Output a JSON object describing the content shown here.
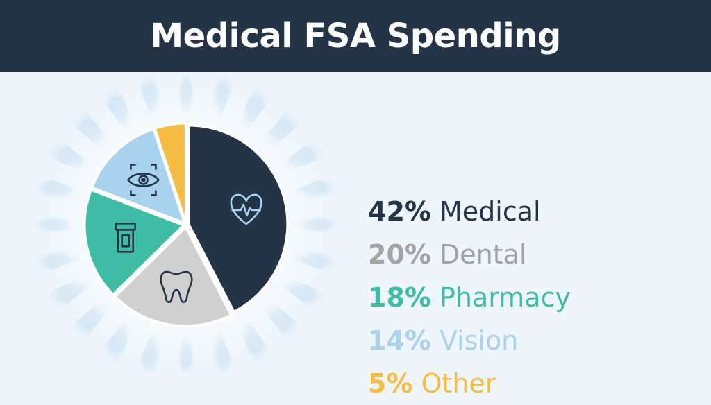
{
  "header": {
    "title": "Medical FSA Spending"
  },
  "colors": {
    "header_bg": "#243447",
    "background": "#eef6fc",
    "medical": "#243447",
    "dental": "#d0d0d0",
    "pharmacy": "#3dbda5",
    "vision": "#a9d2ef",
    "other": "#f7bd42",
    "legend_dental_text": "#a3a3a3"
  },
  "chart_data": {
    "type": "pie",
    "title": "Medical FSA Spending",
    "legend_position": "right",
    "slices": [
      {
        "label": "Medical",
        "value": 42,
        "display": "42%",
        "color": "#243447",
        "text_color": "#243447",
        "icon": "heart-pulse-icon"
      },
      {
        "label": "Dental",
        "value": 20,
        "display": "20%",
        "color": "#d0d0d0",
        "text_color": "#a3a3a3",
        "icon": "tooth-icon"
      },
      {
        "label": "Pharmacy",
        "value": 18,
        "display": "18%",
        "color": "#3dbda5",
        "text_color": "#3dbda5",
        "icon": "pill-bottle-icon"
      },
      {
        "label": "Vision",
        "value": 14,
        "display": "14%",
        "color": "#a9d2ef",
        "text_color": "#a9d2ef",
        "icon": "eye-scan-icon"
      },
      {
        "label": "Other",
        "value": 5,
        "display": "5%",
        "color": "#f7bd42",
        "text_color": "#f7bd42",
        "icon": ""
      }
    ]
  }
}
